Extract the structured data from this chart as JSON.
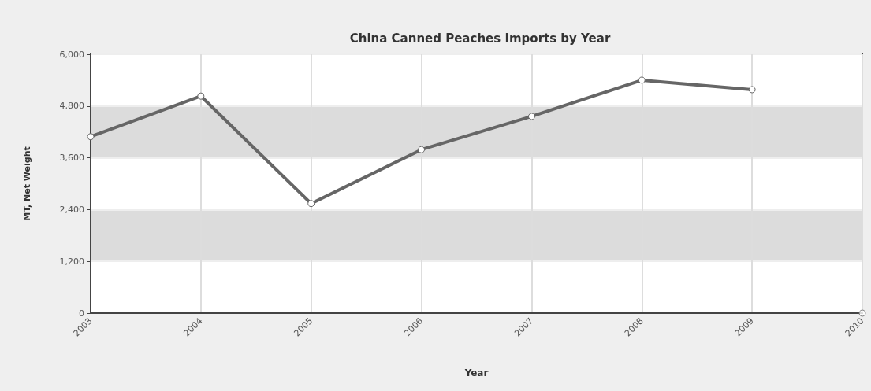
{
  "chart_data": {
    "type": "line",
    "title": "China Canned Peaches Imports by Year",
    "xlabel": "Year",
    "ylabel": "MT, Net Weight",
    "categories": [
      "2003",
      "2004",
      "2005",
      "2006",
      "2007",
      "2008",
      "2009",
      "2010"
    ],
    "series": [
      {
        "color": "#666666",
        "values": [
          4090,
          5030,
          2540,
          3790,
          4560,
          5400,
          5180,
          null
        ]
      },
      {
        "type": "scatter",
        "color": "#666666",
        "values": [
          null,
          null,
          null,
          null,
          null,
          null,
          null,
          0
        ]
      }
    ],
    "ylim": [
      0,
      6000
    ],
    "yticks": [
      {
        "value": 0,
        "label": "0"
      },
      {
        "value": 1200,
        "label": "1,200"
      },
      {
        "value": 2400,
        "label": "2,400"
      },
      {
        "value": 3600,
        "label": "3,600"
      },
      {
        "value": 4800,
        "label": "4,800"
      },
      {
        "value": 6000,
        "label": "6,000"
      }
    ],
    "grid": true,
    "marker": "circle"
  }
}
